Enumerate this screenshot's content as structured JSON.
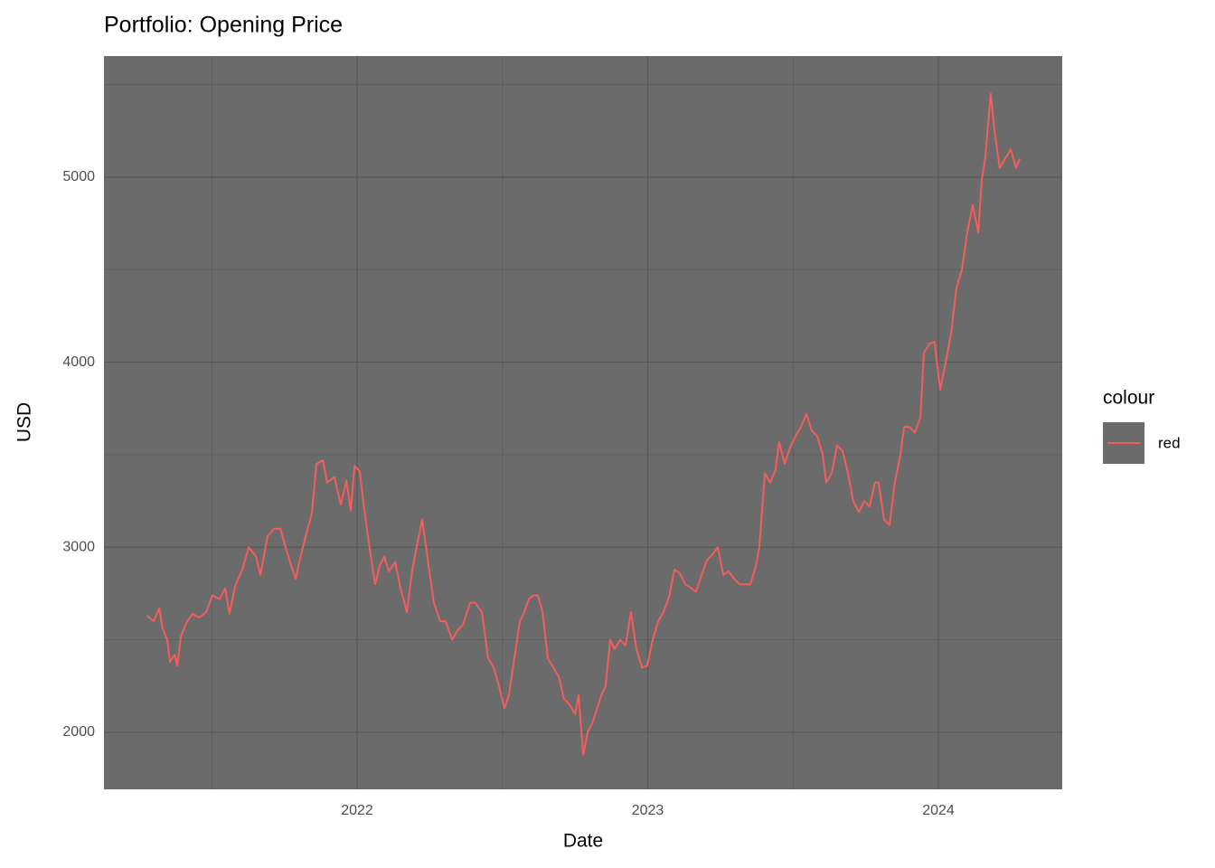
{
  "chart_data": {
    "type": "line",
    "title": "Portfolio: Opening Price",
    "x_label": "Date",
    "y_label": "USD",
    "legend_title": "colour",
    "legend_position": "right",
    "grid": true,
    "panel_color": "#6b6b6b",
    "grid_color": "#575757",
    "xlim": [
      2021.129,
      2024.426
    ],
    "ylim": [
      1692,
      5654
    ],
    "xticks": [
      2022,
      2023,
      2024
    ],
    "yticks": [
      2000,
      3000,
      4000,
      5000
    ],
    "x": [
      2021.278,
      2021.3,
      2021.319,
      2021.331,
      2021.347,
      2021.356,
      2021.372,
      2021.381,
      2021.394,
      2021.415,
      2021.434,
      2021.456,
      2021.481,
      2021.502,
      2021.527,
      2021.546,
      2021.561,
      2021.58,
      2021.605,
      2021.627,
      2021.652,
      2021.667,
      2021.692,
      2021.714,
      2021.736,
      2021.754,
      2021.773,
      2021.789,
      2021.804,
      2021.823,
      2021.844,
      2021.86,
      2021.882,
      2021.897,
      2021.922,
      2021.944,
      2021.963,
      2021.978,
      2021.991,
      2022.009,
      2022.025,
      2022.047,
      2022.062,
      2022.078,
      2022.093,
      2022.109,
      2022.131,
      2022.149,
      2022.171,
      2022.19,
      2022.211,
      2022.224,
      2022.246,
      2022.264,
      2022.286,
      2022.305,
      2022.327,
      2022.345,
      2022.364,
      2022.389,
      2022.407,
      2022.429,
      2022.451,
      2022.47,
      2022.488,
      2022.507,
      2022.522,
      2022.541,
      2022.56,
      2022.575,
      2022.591,
      2022.606,
      2022.622,
      2022.638,
      2022.656,
      2022.675,
      2022.694,
      2022.712,
      2022.731,
      2022.75,
      2022.762,
      2022.778,
      2022.793,
      2022.809,
      2022.824,
      2022.84,
      2022.855,
      2022.871,
      2022.886,
      2022.905,
      2022.924,
      2022.942,
      2022.961,
      2022.98,
      2022.998,
      2023.017,
      2023.036,
      2023.054,
      2023.073,
      2023.092,
      2023.11,
      2023.129,
      2023.148,
      2023.166,
      2023.185,
      2023.204,
      2023.222,
      2023.241,
      2023.26,
      2023.278,
      2023.297,
      2023.316,
      2023.334,
      2023.353,
      2023.372,
      2023.384,
      2023.403,
      2023.421,
      2023.44,
      2023.452,
      2023.471,
      2023.49,
      2023.508,
      2023.527,
      2023.546,
      2023.564,
      2023.583,
      2023.602,
      2023.614,
      2023.633,
      2023.651,
      2023.67,
      2023.689,
      2023.707,
      2023.726,
      2023.745,
      2023.763,
      2023.782,
      2023.794,
      2023.813,
      2023.832,
      2023.85,
      2023.869,
      2023.882,
      2023.9,
      2023.919,
      2023.938,
      2023.95,
      2023.969,
      2023.987,
      2024.006,
      2024.025,
      2024.043,
      2024.062,
      2024.081,
      2024.099,
      2024.118,
      2024.137,
      2024.149,
      2024.161,
      2024.18,
      2024.193,
      2024.211,
      2024.23,
      2024.249,
      2024.267,
      2024.28
    ],
    "series": [
      {
        "name": "red",
        "color": "#f35e5a",
        "values": [
          2630,
          2600,
          2670,
          2560,
          2500,
          2380,
          2420,
          2360,
          2520,
          2600,
          2640,
          2620,
          2650,
          2740,
          2720,
          2780,
          2640,
          2790,
          2880,
          3000,
          2950,
          2850,
          3060,
          3100,
          3100,
          3000,
          2900,
          2830,
          2940,
          3060,
          3180,
          3450,
          3470,
          3350,
          3380,
          3230,
          3360,
          3200,
          3440,
          3410,
          3200,
          2950,
          2800,
          2900,
          2950,
          2870,
          2920,
          2780,
          2650,
          2880,
          3050,
          3150,
          2900,
          2700,
          2600,
          2600,
          2500,
          2550,
          2580,
          2700,
          2700,
          2650,
          2400,
          2350,
          2250,
          2130,
          2200,
          2400,
          2600,
          2650,
          2720,
          2740,
          2740,
          2650,
          2400,
          2350,
          2300,
          2180,
          2150,
          2100,
          2200,
          1880,
          2000,
          2050,
          2120,
          2200,
          2250,
          2500,
          2450,
          2500,
          2470,
          2650,
          2450,
          2350,
          2360,
          2500,
          2600,
          2650,
          2730,
          2880,
          2860,
          2800,
          2780,
          2760,
          2850,
          2930,
          2960,
          3000,
          2850,
          2870,
          2830,
          2800,
          2800,
          2800,
          2900,
          3000,
          3400,
          3350,
          3420,
          3570,
          3450,
          3540,
          3600,
          3650,
          3720,
          3630,
          3600,
          3500,
          3350,
          3400,
          3550,
          3520,
          3400,
          3250,
          3190,
          3250,
          3220,
          3350,
          3350,
          3150,
          3120,
          3350,
          3500,
          3650,
          3650,
          3620,
          3700,
          4050,
          4100,
          4110,
          3850,
          4000,
          4150,
          4400,
          4500,
          4700,
          4850,
          4700,
          4980,
          5100,
          5450,
          5250,
          5050,
          5100,
          5150,
          5050,
          5100
        ]
      }
    ]
  }
}
